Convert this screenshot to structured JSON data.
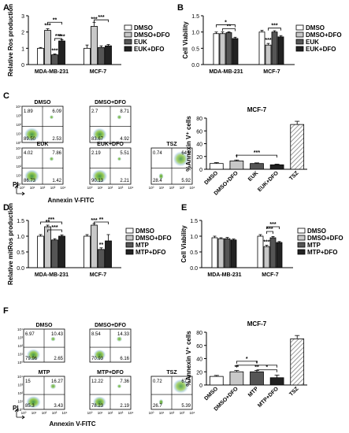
{
  "chart_data": [
    {
      "panel": "A",
      "type": "bar",
      "ylabel": "Relative Ros production",
      "ylim": [
        0,
        3
      ],
      "yticks": [
        "0",
        "1",
        "2",
        "3"
      ],
      "categories": [
        "MDA-MB-231",
        "MCF-7"
      ],
      "series": [
        {
          "name": "DMSO",
          "values": [
            1.0,
            1.0
          ],
          "err": [
            0.05,
            0.2
          ],
          "fill": "#ffffff"
        },
        {
          "name": "DMSO+DFO",
          "values": [
            2.1,
            2.35
          ],
          "err": [
            0.1,
            0.25
          ],
          "fill": "#c8c8c8"
        },
        {
          "name": "EUK",
          "values": [
            0.6,
            1.05
          ],
          "err": [
            0.05,
            0.1
          ],
          "fill": "#555555"
        },
        {
          "name": "EUK+DFO",
          "values": [
            1.45,
            1.15
          ],
          "err": [
            0.08,
            0.08
          ],
          "fill": "#222222"
        }
      ],
      "bar_marks": [
        [
          "",
          "***",
          "***",
          "***"
        ],
        [
          "",
          "***",
          "",
          ""
        ]
      ],
      "brackets": [
        {
          "group": 0,
          "from": 1,
          "to": 3,
          "label": "**",
          "level": 2.6
        },
        {
          "group": 0,
          "from": 2,
          "to": 3,
          "label": "***",
          "level": 1.6
        },
        {
          "group": 1,
          "from": 1,
          "to": 3,
          "label": "***",
          "level": 2.75
        }
      ]
    },
    {
      "panel": "B",
      "type": "bar",
      "ylabel": "Cell Viability",
      "ylim": [
        0,
        1.5
      ],
      "yticks": [
        "0.0",
        "0.5",
        "1.0",
        "1.5"
      ],
      "categories": [
        "MDA-MB-231",
        "MCF-7"
      ],
      "series": [
        {
          "name": "DMSO",
          "values": [
            0.95,
            1.0
          ],
          "err": [
            0.05,
            0.05
          ],
          "fill": "#ffffff"
        },
        {
          "name": "DMSO+DFO",
          "values": [
            0.95,
            0.6
          ],
          "err": [
            0.05,
            0.05
          ],
          "fill": "#c8c8c8"
        },
        {
          "name": "EUK",
          "values": [
            0.98,
            1.0
          ],
          "err": [
            0.03,
            0.04
          ],
          "fill": "#555555"
        },
        {
          "name": "EUK+DFO",
          "values": [
            0.8,
            0.85
          ],
          "err": [
            0.04,
            0.04
          ],
          "fill": "#222222"
        }
      ],
      "bar_marks": [
        [
          "",
          "",
          "",
          ""
        ],
        [
          "",
          "***",
          "",
          ""
        ]
      ],
      "brackets": [
        {
          "group": 0,
          "from": 0,
          "to": 3,
          "label": "*",
          "level": 1.22
        },
        {
          "group": 0,
          "from": 1,
          "to": 3,
          "label": "**",
          "level": 1.1
        },
        {
          "group": 1,
          "from": 1,
          "to": 3,
          "label": "***",
          "level": 1.12
        }
      ]
    },
    {
      "panel": "C",
      "type": "bar",
      "title": "MCF-7",
      "ylabel": "%Annexin V⁺ cells",
      "ylim": [
        0,
        80
      ],
      "yticks": [
        "0",
        "20",
        "40",
        "60",
        "80"
      ],
      "categories": [
        "DMSO",
        "DMSO+DFO",
        "EUK",
        "EUK+DFO",
        "TSZ"
      ],
      "values": [
        9,
        13,
        9,
        7,
        70
      ],
      "err": [
        1.5,
        1.5,
        1,
        1,
        5
      ],
      "fills": [
        "#ffffff",
        "#c8c8c8",
        "#555555",
        "#222222",
        "hatch"
      ],
      "bar_marks": [
        "",
        "*",
        "",
        "",
        ""
      ],
      "brackets": [
        {
          "from": 1,
          "to": 3,
          "label": "***",
          "level": 22
        }
      ]
    },
    {
      "panel": "D",
      "type": "bar",
      "ylabel": "Relative mitRos production",
      "ylim": [
        0,
        1.5
      ],
      "yticks": [
        "0.0",
        "0.5",
        "1.0",
        "1.5"
      ],
      "categories": [
        "MDA-MB-231",
        "MCF-7"
      ],
      "series": [
        {
          "name": "DMSO",
          "values": [
            1.0,
            1.0
          ],
          "err": [
            0.05,
            0.05
          ],
          "fill": "#ffffff"
        },
        {
          "name": "DMSO+DFO",
          "values": [
            1.3,
            1.35
          ],
          "err": [
            0.05,
            0.05
          ],
          "fill": "#c8c8c8"
        },
        {
          "name": "MTP",
          "values": [
            0.88,
            0.58
          ],
          "err": [
            0.04,
            0.05
          ],
          "fill": "#555555"
        },
        {
          "name": "MTP+DFO",
          "values": [
            1.0,
            0.85
          ],
          "err": [
            0.04,
            0.2
          ],
          "fill": "#222222"
        }
      ],
      "bar_marks": [
        [
          "",
          "**",
          "",
          ""
        ],
        [
          "",
          "***",
          "**",
          ""
        ]
      ],
      "brackets": [
        {
          "group": 0,
          "from": 1,
          "to": 3,
          "label": "***",
          "level": 1.2
        },
        {
          "group": 0,
          "from": 0,
          "to": 3,
          "label": "***",
          "level": 1.45
        },
        {
          "group": 1,
          "from": 1,
          "to": 3,
          "label": "**",
          "level": 1.45
        }
      ]
    },
    {
      "panel": "E",
      "type": "bar",
      "ylabel": "Cell Viability",
      "ylim": [
        0,
        1.5
      ],
      "yticks": [
        "0.0",
        "0.5",
        "1.0",
        "1.5"
      ],
      "categories": [
        "MDA-MB-231",
        "MCF-7"
      ],
      "series": [
        {
          "name": "DMSO",
          "values": [
            0.95,
            1.0
          ],
          "err": [
            0.05,
            0.05
          ],
          "fill": "#ffffff"
        },
        {
          "name": "DMSO+DFO",
          "values": [
            0.92,
            0.67
          ],
          "err": [
            0.03,
            0.04
          ],
          "fill": "#c8c8c8"
        },
        {
          "name": "MTP",
          "values": [
            0.92,
            0.95
          ],
          "err": [
            0.04,
            0.04
          ],
          "fill": "#555555"
        },
        {
          "name": "MTP+DFO",
          "values": [
            0.88,
            0.8
          ],
          "err": [
            0.03,
            0.03
          ],
          "fill": "#222222"
        }
      ],
      "bar_marks": [
        [
          "",
          "",
          "",
          ""
        ],
        [
          "",
          "***",
          "",
          ""
        ]
      ],
      "brackets": [
        {
          "group": 1,
          "from": 1,
          "to": 3,
          "label": "***",
          "level": 1.3
        },
        {
          "group": 1,
          "from": 1,
          "to": 2,
          "label": "***",
          "level": 1.15
        }
      ]
    },
    {
      "panel": "F",
      "type": "bar",
      "title": "MCF-7",
      "ylabel": "%Annexin V⁺ cells",
      "ylim": [
        0,
        80
      ],
      "yticks": [
        "0",
        "20",
        "40",
        "60",
        "80"
      ],
      "categories": [
        "DMSO",
        "DMSO+DFO",
        "MTP",
        "MTP+DFO",
        "TSZ"
      ],
      "values": [
        13,
        20,
        20,
        11,
        70
      ],
      "err": [
        1.5,
        2,
        2,
        4,
        5
      ],
      "fills": [
        "#ffffff",
        "#c8c8c8",
        "#555555",
        "#222222",
        "hatch"
      ],
      "bar_marks": [
        "",
        "**",
        "**",
        "",
        ""
      ],
      "brackets": [
        {
          "from": 1,
          "to": 3,
          "label": "*",
          "level": 30
        },
        {
          "from": 2,
          "to": 3,
          "label": "*",
          "level": 23
        },
        {
          "from": 1,
          "to": 2,
          "label": "*",
          "level": 36
        }
      ]
    }
  ],
  "panel_labels": [
    "A",
    "B",
    "C",
    "D",
    "E",
    "F"
  ],
  "flow": {
    "C": {
      "x_label": "Annexin V-FITC",
      "y_label": "PI",
      "axis_ticks": [
        "10⁰",
        "10¹",
        "10²",
        "10³",
        "10⁴"
      ],
      "plots": [
        {
          "name": "DMSO",
          "quadrants": [
            "1.89",
            "6.09",
            "89.50",
            "2.53"
          ]
        },
        {
          "name": "DMSO+DFO",
          "quadrants": [
            "2.7",
            "8.71",
            "83.67",
            "4.92"
          ]
        },
        {
          "name": "EUK",
          "quadrants": [
            "4.02",
            "7.86",
            "86.73",
            "1.42"
          ]
        },
        {
          "name": "EUK+DFO",
          "quadrants": [
            "2.19",
            "5.51",
            "90.13",
            "2.21"
          ]
        },
        {
          "name": "TSZ",
          "quadrants": [
            "0.74",
            "64.9",
            "28.4",
            "5.92"
          ]
        }
      ]
    },
    "F": {
      "x_label": "Annexin V-FITC",
      "y_label": "PI",
      "axis_ticks": [
        "10⁰",
        "10¹",
        "10²",
        "10³",
        "10⁴"
      ],
      "plots": [
        {
          "name": "DMSO",
          "quadrants": [
            "6.97",
            "10.43",
            "79.96",
            "2.65"
          ]
        },
        {
          "name": "DMSO+DFO",
          "quadrants": [
            "8.54",
            "14.33",
            "70.93",
            "6.16"
          ]
        },
        {
          "name": "MTP",
          "quadrants": [
            "15",
            "16.27",
            "85.3",
            "3.43"
          ]
        },
        {
          "name": "MTP+DFO",
          "quadrants": [
            "12.22",
            "7.36",
            "78.23",
            "2.19"
          ]
        },
        {
          "name": "TSZ",
          "quadrants": [
            "0.72",
            "67.2",
            "26.7",
            "5.39"
          ]
        }
      ]
    }
  }
}
